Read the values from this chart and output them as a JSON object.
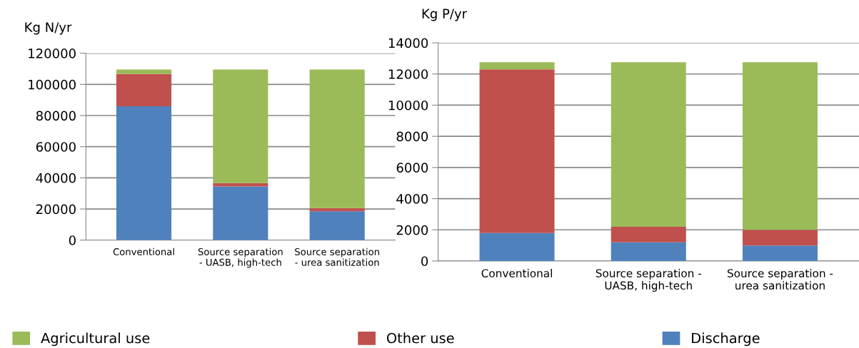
{
  "chart_data": [
    {
      "type": "bar",
      "stacked": true,
      "ylabel": "Kg N/yr",
      "categories": [
        "Conventional",
        "Source separation\n- UASB, high-tech",
        "Source separation\n- urea sanitization"
      ],
      "series": [
        {
          "name": "Discharge",
          "color": "#4f81bd",
          "values": [
            86000,
            34500,
            18500
          ]
        },
        {
          "name": "Other use",
          "color": "#c0504d",
          "values": [
            20700,
            2100,
            2100
          ]
        },
        {
          "name": "Agricultural use",
          "color": "#9bbb59",
          "values": [
            2800,
            72900,
            88900
          ]
        }
      ],
      "ylim": [
        0,
        120000
      ],
      "yticks": [
        0,
        20000,
        40000,
        60000,
        80000,
        100000,
        120000
      ],
      "grid": "y",
      "legend": "bottom"
    },
    {
      "type": "bar",
      "stacked": true,
      "ylabel": "Kg P/yr",
      "categories": [
        "Conventional",
        "Source separation -\nUASB, high-tech",
        "Source separation -\nurea sanitization"
      ],
      "series": [
        {
          "color": "#4f81bd",
          "values": [
            1800,
            1200,
            1000
          ]
        },
        {
          "color": "#c0504d",
          "values": [
            10500,
            1000,
            1000
          ]
        },
        {
          "color": "#9bbb59",
          "values": [
            450,
            10550,
            10750
          ]
        }
      ],
      "ylim": [
        0,
        14000
      ],
      "yticks": [
        0,
        2000,
        4000,
        6000,
        8000,
        10000,
        12000,
        14000
      ],
      "grid": "y"
    }
  ]
}
